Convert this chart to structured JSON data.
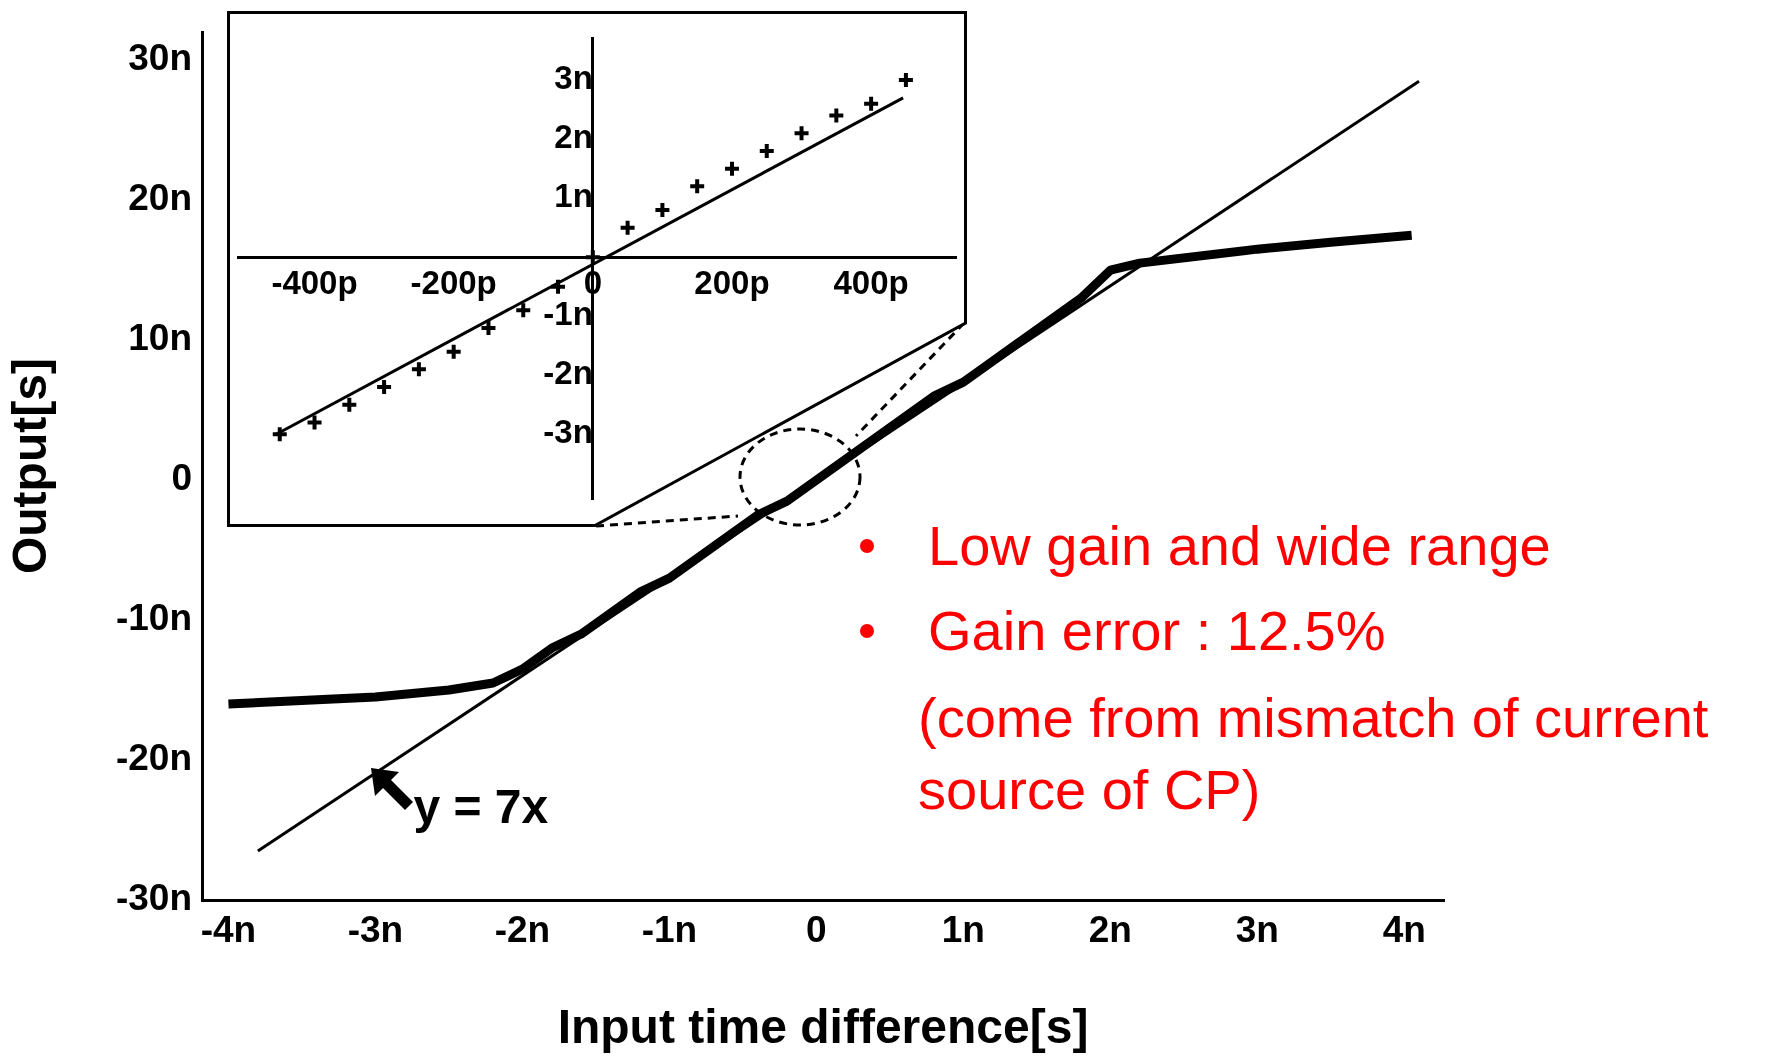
{
  "chart_data": [
    {
      "type": "line",
      "xlabel": "Input time difference[s]",
      "ylabel": "Output[s]",
      "xlim": [
        -4.18,
        4.27
      ],
      "ylim": [
        -30,
        32
      ],
      "xticks": [
        {
          "value": -4,
          "label": "-4n"
        },
        {
          "value": -3,
          "label": "-3n"
        },
        {
          "value": -2,
          "label": "-2n"
        },
        {
          "value": -1,
          "label": "-1n"
        },
        0,
        {
          "value": 1,
          "label": "1n"
        },
        {
          "value": 2,
          "label": "2n"
        },
        {
          "value": 3,
          "label": "3n"
        },
        {
          "value": 4,
          "label": "4n"
        }
      ],
      "yticks": [
        {
          "value": -30,
          "label": "-30n"
        },
        {
          "value": -20,
          "label": "-20n"
        },
        {
          "value": -10,
          "label": "-10n"
        },
        0,
        {
          "value": 10,
          "label": "10n"
        },
        {
          "value": 20,
          "label": "20n"
        },
        {
          "value": 30,
          "label": "30n"
        }
      ],
      "grid": false,
      "legend": false,
      "series": [
        {
          "color": "#000000",
          "x": [
            -4,
            -3,
            -2.5,
            -2.2,
            -2,
            -1.8,
            -1.6,
            -1.4,
            -1.2,
            -1,
            -0.8,
            -0.6,
            -0.4,
            -0.2,
            0,
            0.2,
            0.4,
            0.6,
            0.8,
            1,
            1.2,
            1.4,
            1.6,
            1.8,
            2,
            2.2,
            3,
            3.5,
            4.05
          ],
          "values": [
            -16,
            -15.5,
            -15,
            -14.5,
            -13.5,
            -12,
            -11,
            -9.5,
            -8,
            -7,
            -5.5,
            -4,
            -2.5,
            -1.5,
            0,
            1.5,
            3,
            4.5,
            6,
            7,
            8.5,
            10,
            11.5,
            13,
            15,
            15.5,
            16.5,
            17,
            17.5
          ]
        },
        {
          "color": "#000000",
          "type": "line",
          "x": [
            -3.8,
            4.1
          ],
          "values": [
            -26.5,
            28.5
          ]
        }
      ],
      "annotations": [
        {
          "text": "y = 7x",
          "x": -3,
          "y": -21
        },
        "Low gain and wide range",
        "Gain error : 12.5%",
        "(come from mismatch of current source of CP)"
      ]
    },
    {
      "type": "line",
      "xlim": [
        -510,
        522
      ],
      "ylim": [
        -4.1,
        3.7
      ],
      "xticks": [
        {
          "value": -400,
          "label": "-400p"
        },
        {
          "value": -200,
          "label": "-200p"
        },
        0,
        {
          "value": 200,
          "label": "200p"
        },
        {
          "value": 400,
          "label": "400p"
        }
      ],
      "yticks": [
        {
          "value": -3,
          "label": "-3n"
        },
        {
          "value": -2,
          "label": "-2n"
        },
        {
          "value": -1,
          "label": "-1n"
        },
        {
          "value": 1,
          "label": "1n"
        },
        {
          "value": 2,
          "label": "2n"
        },
        {
          "value": 3,
          "label": "3n"
        }
      ],
      "grid": false,
      "legend": false,
      "series": [
        {
          "color": "#000000",
          "type": "scatter",
          "marker": "cross",
          "x": [
            -450,
            -400,
            -350,
            -300,
            -250,
            -200,
            -150,
            -100,
            -50,
            0,
            50,
            100,
            150,
            200,
            250,
            300,
            350,
            400,
            450
          ],
          "values": [
            -3,
            -2.8,
            -2.5,
            -2.2,
            -1.9,
            -1.6,
            -1.2,
            -0.9,
            -0.5,
            0,
            0.5,
            0.8,
            1.2,
            1.5,
            1.8,
            2.1,
            2.4,
            2.6,
            3
          ]
        },
        {
          "color": "#000000",
          "type": "line",
          "x": [
            -455,
            446
          ],
          "values": [
            -3,
            2.7
          ]
        }
      ]
    }
  ]
}
